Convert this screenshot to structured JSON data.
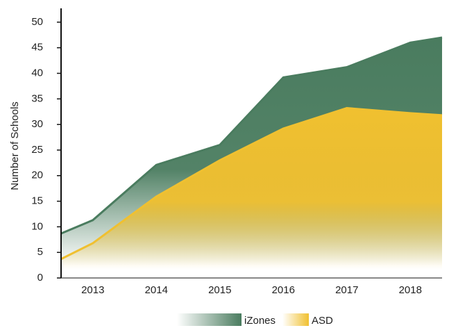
{
  "chart_data": {
    "type": "area",
    "y_label": "Number of Schools",
    "x": [
      2012.5,
      2013,
      2014,
      2015,
      2016,
      2017,
      2018,
      2018.5
    ],
    "series": [
      {
        "name": "iZones",
        "color": "#4a7c5f",
        "values": [
          8.7,
          11.3,
          22.1,
          26,
          39.2,
          41.2,
          46,
          47
        ]
      },
      {
        "name": "ASD",
        "color": "#f0c030",
        "values": [
          3.7,
          6.8,
          15.9,
          23,
          29.2,
          33.2,
          32.2,
          31.8
        ]
      }
    ],
    "xlim": [
      2012.5,
      2018.5
    ],
    "xticks": [
      2013,
      2014,
      2015,
      2016,
      2017,
      2018
    ],
    "ylim": [
      0,
      52.7
    ],
    "yticks": [
      0,
      5,
      10,
      15,
      20,
      25,
      30,
      35,
      40,
      45,
      50
    ],
    "grid": true,
    "legend": "bottom"
  }
}
